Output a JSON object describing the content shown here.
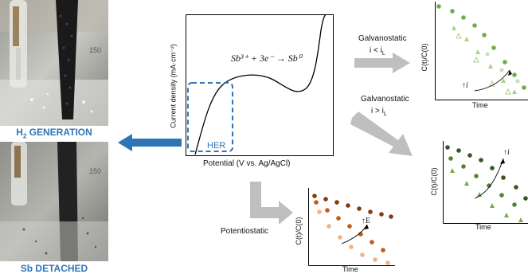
{
  "photos": {
    "top_label_prefix": "H",
    "top_label_subscript": "2",
    "top_label_suffix": " GENERATION",
    "bottom_label": "Sb DETACHED",
    "ruler_text": "150"
  },
  "main_plot": {
    "ylabel": "Current density (mA·cm⁻²)",
    "xlabel": "Potential (V vs. Ag/AgCl)",
    "equation": "Sb³⁺ + 3e⁻ → Sb⁰",
    "her_label": "HER"
  },
  "arrows": {
    "galv_low_title": "Galvanostatic",
    "galv_low_cond": "i < i",
    "galv_low_sub": "L",
    "galv_high_title": "Galvanostatic",
    "galv_high_cond": "i > i",
    "galv_high_sub": "L",
    "potentiostatic": "Potentiostatic"
  },
  "mini_plots": {
    "ylabel": "C(t)/C(0)",
    "xlabel": "Time",
    "galv_low_trend": "↑i",
    "galv_high_trend": "↑i",
    "potentiostatic_trend": "↑E"
  },
  "colors": {
    "blue": "#2e75b6",
    "gray_arrow": "#bfbfbf",
    "light_green": "#a9d18e",
    "mid_green": "#70ad47",
    "dark_green": "#375623",
    "light_orange": "#f4b183",
    "mid_orange": "#c55a11",
    "dark_brown": "#843c0c"
  }
}
